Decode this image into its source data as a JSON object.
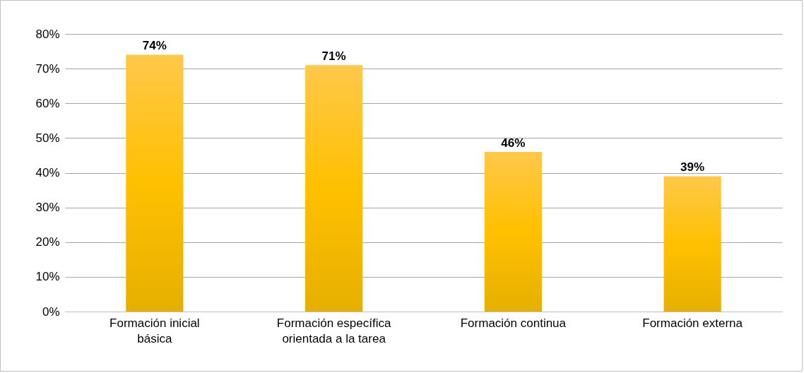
{
  "chart_data": {
    "type": "bar",
    "categories": [
      "Formación inicial básica",
      "Formación específica orientada a la tarea",
      "Formación continua",
      "Formación externa"
    ],
    "values": [
      74,
      71,
      46,
      39
    ],
    "value_labels": [
      "74%",
      "71%",
      "46%",
      "39%"
    ],
    "color": "#ffc000",
    "ylim": [
      0,
      80
    ],
    "yticks": [
      {
        "value": 0,
        "label": "0%"
      },
      {
        "value": 10,
        "label": "10%"
      },
      {
        "value": 20,
        "label": "20%"
      },
      {
        "value": 30,
        "label": "30%"
      },
      {
        "value": 40,
        "label": "40%"
      },
      {
        "value": 50,
        "label": "50%"
      },
      {
        "value": 60,
        "label": "60%"
      },
      {
        "value": 70,
        "label": "70%"
      },
      {
        "value": 80,
        "label": "80%"
      }
    ],
    "grid": "y"
  }
}
